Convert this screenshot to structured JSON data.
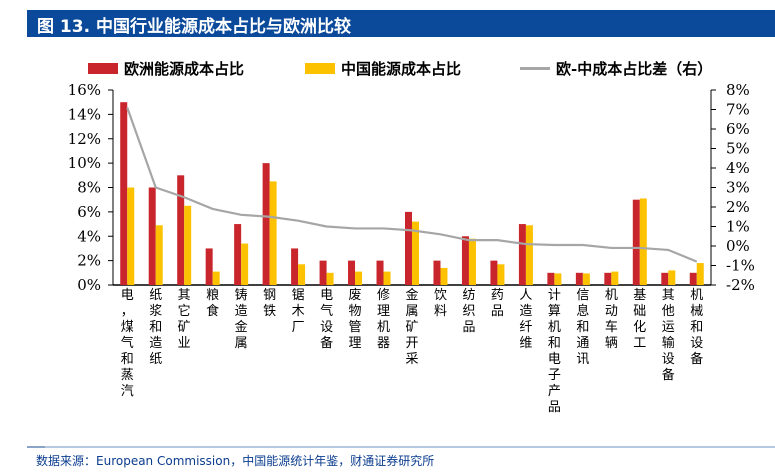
{
  "header": {
    "title": "图 13. 中国行业能源成本占比与欧洲比较"
  },
  "footer": {
    "source": "数据来源：European Commission，中国能源统计年鉴，财通证券研究所"
  },
  "colors": {
    "europe": "#c9252c",
    "china": "#fcc200",
    "diff": "#a6a6a6",
    "title_bg": "#0b4a9a"
  },
  "chart_data": {
    "type": "bar",
    "title": "中国行业能源成本占比与欧洲比较",
    "xlabel": "",
    "ylabel": "",
    "y2label": "",
    "ylim": [
      0,
      16
    ],
    "y_ticks": [
      0,
      2,
      4,
      6,
      8,
      10,
      12,
      14,
      16
    ],
    "y_tick_labels": [
      "0%",
      "2%",
      "4%",
      "6%",
      "8%",
      "10%",
      "12%",
      "14%",
      "16%"
    ],
    "y2lim": [
      -2,
      8
    ],
    "y2_ticks": [
      -2,
      -1,
      0,
      1,
      2,
      3,
      4,
      5,
      6,
      7,
      8
    ],
    "y2_tick_labels": [
      "-2%",
      "-1%",
      "0%",
      "1%",
      "2%",
      "3%",
      "4%",
      "5%",
      "6%",
      "7%",
      "8%"
    ],
    "grid": false,
    "legend_position": "top",
    "categories": [
      "电，煤气和蒸汽",
      "纸浆和造纸",
      "其它矿业",
      "粮食",
      "铸造金属",
      "钢铁",
      "锯木厂",
      "电气设备",
      "废物管理",
      "修理机器",
      "金属矿开采",
      "饮料",
      "纺织品",
      "药品",
      "人造纤维",
      "计算机和电子产品",
      "信息和通讯",
      "机动车辆",
      "基础化工",
      "其他运输设备",
      "机械和设备"
    ],
    "series": [
      {
        "name": "欧洲能源成本占比",
        "type": "bar",
        "axis": "left",
        "color": "#c9252c",
        "values": [
          15,
          8,
          9,
          3,
          5,
          10,
          3,
          2,
          2,
          2,
          6,
          2,
          4,
          2,
          5,
          1,
          1,
          1,
          7,
          1,
          1
        ]
      },
      {
        "name": "中国能源成本占比",
        "type": "bar",
        "axis": "left",
        "color": "#fcc200",
        "values": [
          8.0,
          4.9,
          6.5,
          1.1,
          3.4,
          8.5,
          1.7,
          1.0,
          1.1,
          1.1,
          5.2,
          1.4,
          3.8,
          1.7,
          4.9,
          0.95,
          0.95,
          1.1,
          7.1,
          1.2,
          1.8
        ]
      },
      {
        "name": "欧-中成本占比差（右）",
        "type": "line",
        "axis": "right",
        "color": "#a6a6a6",
        "values": [
          7.1,
          3.0,
          2.5,
          1.9,
          1.6,
          1.5,
          1.3,
          1.0,
          0.9,
          0.9,
          0.8,
          0.6,
          0.3,
          0.3,
          0.1,
          0.05,
          0.05,
          -0.1,
          -0.1,
          -0.2,
          -0.8
        ]
      }
    ]
  }
}
